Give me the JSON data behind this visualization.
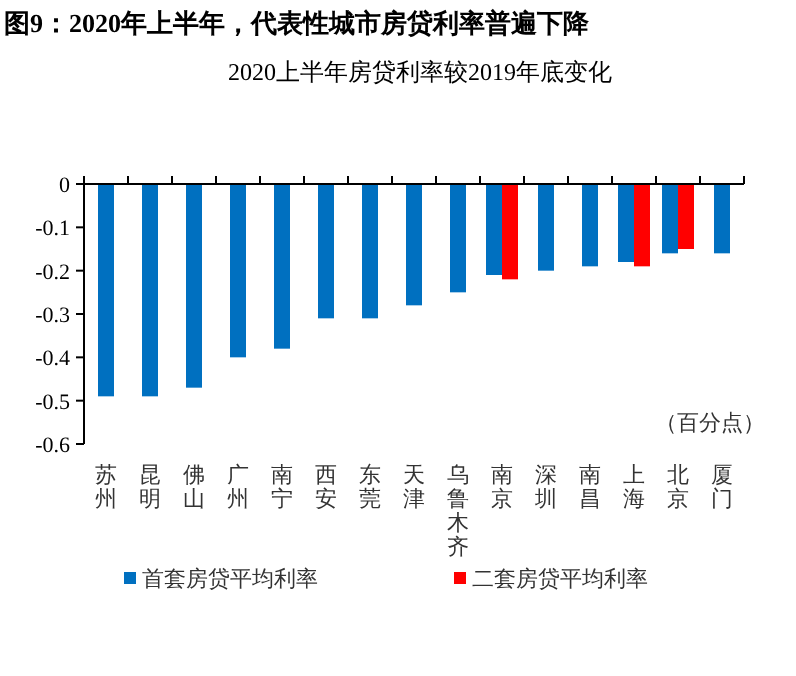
{
  "chart_data": {
    "type": "bar",
    "title": "图9：2020年上半年，代表性城市房贷利率普遍下降",
    "subtitle": "2020上半年房贷利率较2019年底变化",
    "annotations": [
      "（百分点）"
    ],
    "categories": [
      "苏州",
      "昆明",
      "佛山",
      "广州",
      "南宁",
      "西安",
      "东莞",
      "天津",
      "乌鲁木齐",
      "南京",
      "深圳",
      "南昌",
      "上海",
      "北京",
      "厦门"
    ],
    "series": [
      {
        "name": "首套房贷平均利率",
        "color": "#0070c0",
        "values": [
          -0.49,
          -0.49,
          -0.47,
          -0.4,
          -0.38,
          -0.31,
          -0.31,
          -0.28,
          -0.25,
          -0.21,
          -0.2,
          -0.19,
          -0.18,
          -0.16,
          -0.16
        ]
      },
      {
        "name": "二套房贷平均利率",
        "color": "#ff0000",
        "values": [
          null,
          null,
          null,
          null,
          null,
          null,
          null,
          null,
          null,
          -0.22,
          null,
          null,
          -0.19,
          -0.15,
          null
        ]
      }
    ],
    "ylim": [
      -0.6,
      0
    ],
    "yticks": [
      -0.6,
      -0.5,
      -0.4,
      -0.3,
      -0.2,
      -0.1,
      0
    ],
    "legend": "bottom"
  }
}
